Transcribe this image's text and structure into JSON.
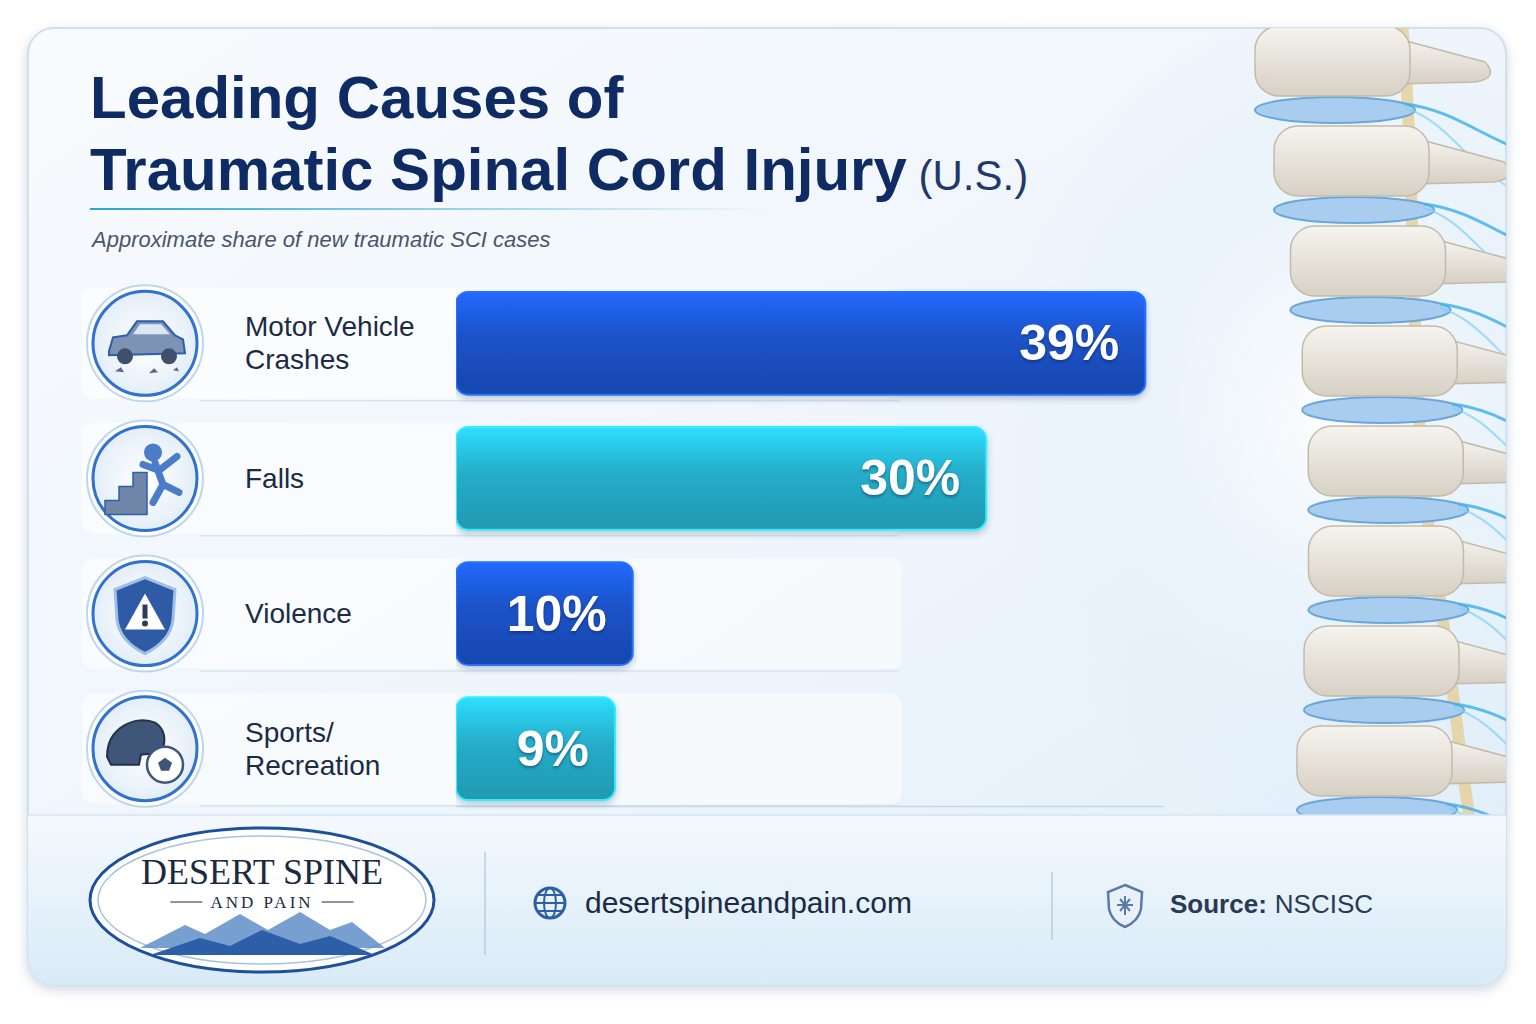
{
  "chart_data": {
    "type": "bar",
    "title": "Leading Causes of Traumatic Spinal Cord Injury (U.S.)",
    "subtitle": "Approximate share of new traumatic SCI cases",
    "orientation": "horizontal",
    "categories": [
      "Motor Vehicle Crashes",
      "Falls",
      "Violence",
      "Sports/Recreation"
    ],
    "values": [
      39,
      30,
      10,
      9
    ],
    "value_labels": [
      "39%",
      "30%",
      "10%",
      "9%"
    ],
    "colors": [
      "#1b52c6",
      "#25adc9",
      "#1b52c6",
      "#25adc9"
    ],
    "xlim": [
      0,
      40
    ],
    "data_labels": true,
    "tick_labels": false
  },
  "logo": {
    "name": "DESERT SPINE",
    "tagline": "AND PAIN"
  },
  "footer": {
    "website": "desertspineandpain.com",
    "source_label": "Source:",
    "source": "NSCISC"
  }
}
